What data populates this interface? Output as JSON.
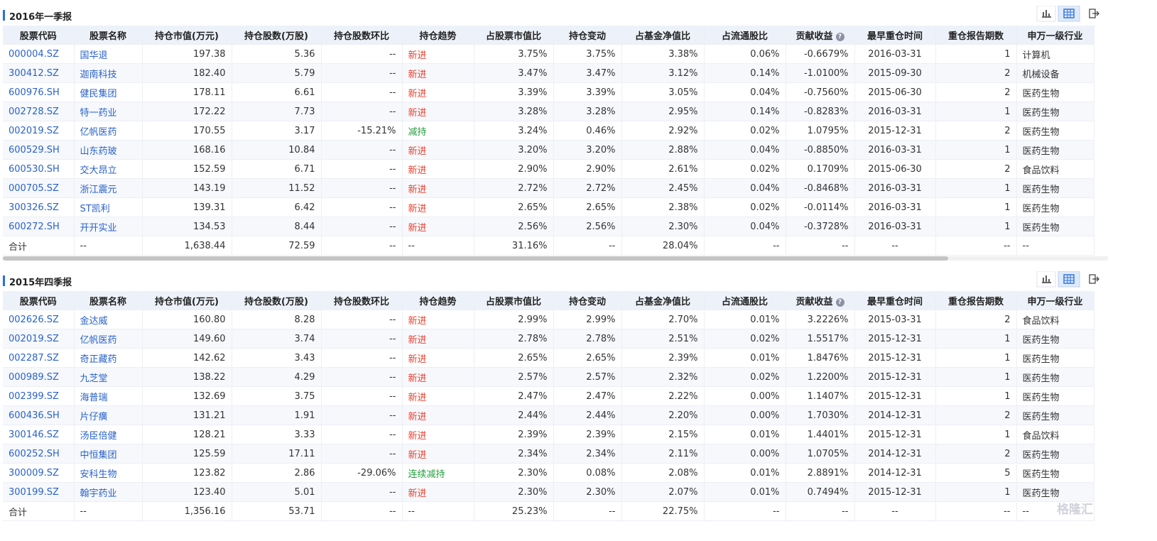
{
  "sections": [
    {
      "title": "2016年一季报",
      "headers": [
        "股票代码",
        "股票名称",
        "持仓市值(万元)",
        "持仓股数(万股)",
        "持仓股数环比",
        "持仓趋势",
        "占股票市值比",
        "持仓变动",
        "占基金净值比",
        "占流通股比",
        "贡献收益",
        "最早重仓时间",
        "重仓报告期数",
        "申万一级行业"
      ],
      "rows": [
        [
          "000004.SZ",
          "国华退",
          "197.38",
          "5.36",
          "--",
          "新进",
          "3.75%",
          "3.75%",
          "3.38%",
          "0.06%",
          "-0.6679%",
          "2016-03-31",
          "1",
          "计算机"
        ],
        [
          "300412.SZ",
          "迦南科技",
          "182.40",
          "5.79",
          "--",
          "新进",
          "3.47%",
          "3.47%",
          "3.12%",
          "0.14%",
          "-1.0100%",
          "2015-09-30",
          "2",
          "机械设备"
        ],
        [
          "600976.SH",
          "健民集团",
          "178.11",
          "6.61",
          "--",
          "新进",
          "3.39%",
          "3.39%",
          "3.05%",
          "0.04%",
          "-0.7560%",
          "2015-06-30",
          "2",
          "医药生物"
        ],
        [
          "002728.SZ",
          "特一药业",
          "172.22",
          "7.73",
          "--",
          "新进",
          "3.28%",
          "3.28%",
          "2.95%",
          "0.14%",
          "-0.8283%",
          "2016-03-31",
          "1",
          "医药生物"
        ],
        [
          "002019.SZ",
          "亿帆医药",
          "170.55",
          "3.17",
          "-15.21%",
          "减持",
          "3.24%",
          "0.46%",
          "2.92%",
          "0.02%",
          "1.0795%",
          "2015-12-31",
          "2",
          "医药生物"
        ],
        [
          "600529.SH",
          "山东药玻",
          "168.16",
          "10.84",
          "--",
          "新进",
          "3.20%",
          "3.20%",
          "2.88%",
          "0.04%",
          "-0.8850%",
          "2016-03-31",
          "1",
          "医药生物"
        ],
        [
          "600530.SH",
          "交大昂立",
          "152.59",
          "6.71",
          "--",
          "新进",
          "2.90%",
          "2.90%",
          "2.61%",
          "0.02%",
          "0.1709%",
          "2015-06-30",
          "2",
          "食品饮料"
        ],
        [
          "000705.SZ",
          "浙江震元",
          "143.19",
          "11.52",
          "--",
          "新进",
          "2.72%",
          "2.72%",
          "2.45%",
          "0.04%",
          "-0.8468%",
          "2016-03-31",
          "1",
          "医药生物"
        ],
        [
          "300326.SZ",
          "ST凯利",
          "139.31",
          "6.42",
          "--",
          "新进",
          "2.65%",
          "2.65%",
          "2.38%",
          "0.02%",
          "-0.0114%",
          "2016-03-31",
          "1",
          "医药生物"
        ],
        [
          "600272.SH",
          "开开实业",
          "134.53",
          "8.44",
          "--",
          "新进",
          "2.56%",
          "2.56%",
          "2.30%",
          "0.04%",
          "-0.3728%",
          "2016-03-31",
          "1",
          "医药生物"
        ]
      ],
      "total": [
        "合计",
        "--",
        "1,638.44",
        "72.59",
        "--",
        "--",
        "31.16%",
        "--",
        "28.04%",
        "--",
        "--",
        "--",
        "--",
        "--"
      ]
    },
    {
      "title": "2015年四季报",
      "headers": [
        "股票代码",
        "股票名称",
        "持仓市值(万元)",
        "持仓股数(万股)",
        "持仓股数环比",
        "持仓趋势",
        "占股票市值比",
        "持仓变动",
        "占基金净值比",
        "占流通股比",
        "贡献收益",
        "最早重仓时间",
        "重仓报告期数",
        "申万一级行业"
      ],
      "rows": [
        [
          "002626.SZ",
          "金达威",
          "160.80",
          "8.28",
          "--",
          "新进",
          "2.99%",
          "2.99%",
          "2.70%",
          "0.01%",
          "3.2226%",
          "2015-03-31",
          "2",
          "食品饮料"
        ],
        [
          "002019.SZ",
          "亿帆医药",
          "149.60",
          "3.74",
          "--",
          "新进",
          "2.78%",
          "2.78%",
          "2.51%",
          "0.02%",
          "1.5517%",
          "2015-12-31",
          "1",
          "医药生物"
        ],
        [
          "002287.SZ",
          "奇正藏药",
          "142.62",
          "3.43",
          "--",
          "新进",
          "2.65%",
          "2.65%",
          "2.39%",
          "0.01%",
          "1.8476%",
          "2015-12-31",
          "1",
          "医药生物"
        ],
        [
          "000989.SZ",
          "九芝堂",
          "138.22",
          "4.29",
          "--",
          "新进",
          "2.57%",
          "2.57%",
          "2.32%",
          "0.02%",
          "1.2200%",
          "2015-12-31",
          "1",
          "医药生物"
        ],
        [
          "002399.SZ",
          "海普瑞",
          "132.69",
          "3.75",
          "--",
          "新进",
          "2.47%",
          "2.47%",
          "2.22%",
          "0.00%",
          "1.1407%",
          "2015-12-31",
          "1",
          "医药生物"
        ],
        [
          "600436.SH",
          "片仔癀",
          "131.21",
          "1.91",
          "--",
          "新进",
          "2.44%",
          "2.44%",
          "2.20%",
          "0.00%",
          "1.7030%",
          "2014-12-31",
          "2",
          "医药生物"
        ],
        [
          "300146.SZ",
          "汤臣倍健",
          "128.21",
          "3.33",
          "--",
          "新进",
          "2.39%",
          "2.39%",
          "2.15%",
          "0.01%",
          "1.4401%",
          "2015-12-31",
          "1",
          "食品饮料"
        ],
        [
          "600252.SH",
          "中恒集团",
          "125.59",
          "17.11",
          "--",
          "新进",
          "2.34%",
          "2.34%",
          "2.11%",
          "0.00%",
          "1.0705%",
          "2014-12-31",
          "2",
          "医药生物"
        ],
        [
          "300009.SZ",
          "安科生物",
          "123.82",
          "2.86",
          "-29.06%",
          "连续减持",
          "2.30%",
          "0.08%",
          "2.08%",
          "0.01%",
          "2.8891%",
          "2014-12-31",
          "5",
          "医药生物"
        ],
        [
          "300199.SZ",
          "翰宇药业",
          "123.40",
          "5.01",
          "--",
          "新进",
          "2.30%",
          "2.30%",
          "2.07%",
          "0.01%",
          "0.7494%",
          "2015-12-31",
          "1",
          "医药生物"
        ]
      ],
      "total": [
        "合计",
        "--",
        "1,356.16",
        "53.71",
        "--",
        "--",
        "25.23%",
        "--",
        "22.75%",
        "--",
        "--",
        "--",
        "--",
        "--"
      ]
    }
  ],
  "trend_colors": {
    "新进": "#e8412f",
    "减持": "#23a03c",
    "连续减持": "#23a03c"
  },
  "watermark": "格隆汇"
}
